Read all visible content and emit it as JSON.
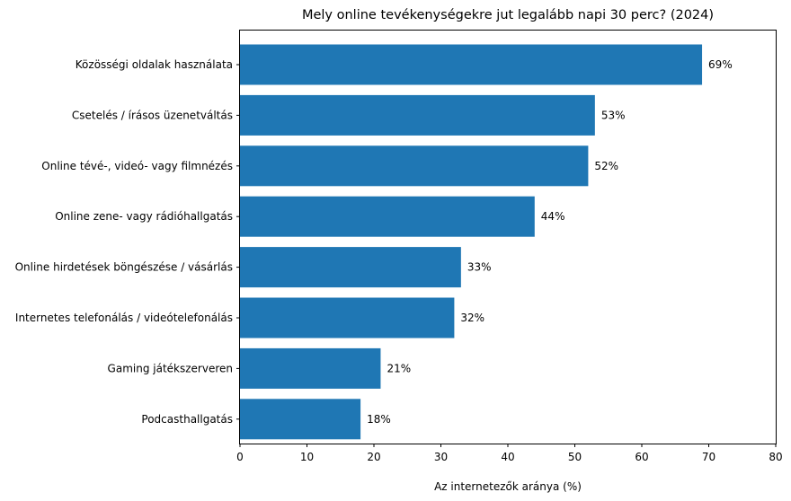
{
  "chart_data": {
    "type": "bar",
    "orientation": "horizontal",
    "title": "Mely online tevékenységekre jut legalább napi 30 perc? (2024)",
    "xlabel": "Az internetezők aránya (%)",
    "ylabel": "",
    "xlim": [
      0,
      80
    ],
    "xticks": [
      0,
      10,
      20,
      30,
      40,
      50,
      60,
      70,
      80
    ],
    "grid": false,
    "bar_color": "#1f77b4",
    "categories": [
      "Közösségi oldalak használata",
      "Csetelés / írásos üzenetváltás",
      "Online tévé-, videó- vagy filmnézés",
      "Online zene- vagy rádióhallgatás",
      "Online hirdetések böngészése / vásárlás",
      "Internetes telefonálás / videótelefonálás",
      "Gaming játékszerveren",
      "Podcasthallgatás"
    ],
    "values": [
      69,
      53,
      52,
      44,
      33,
      32,
      21,
      18
    ],
    "data_labels": [
      "69%",
      "53%",
      "52%",
      "44%",
      "33%",
      "32%",
      "21%",
      "18%"
    ]
  }
}
